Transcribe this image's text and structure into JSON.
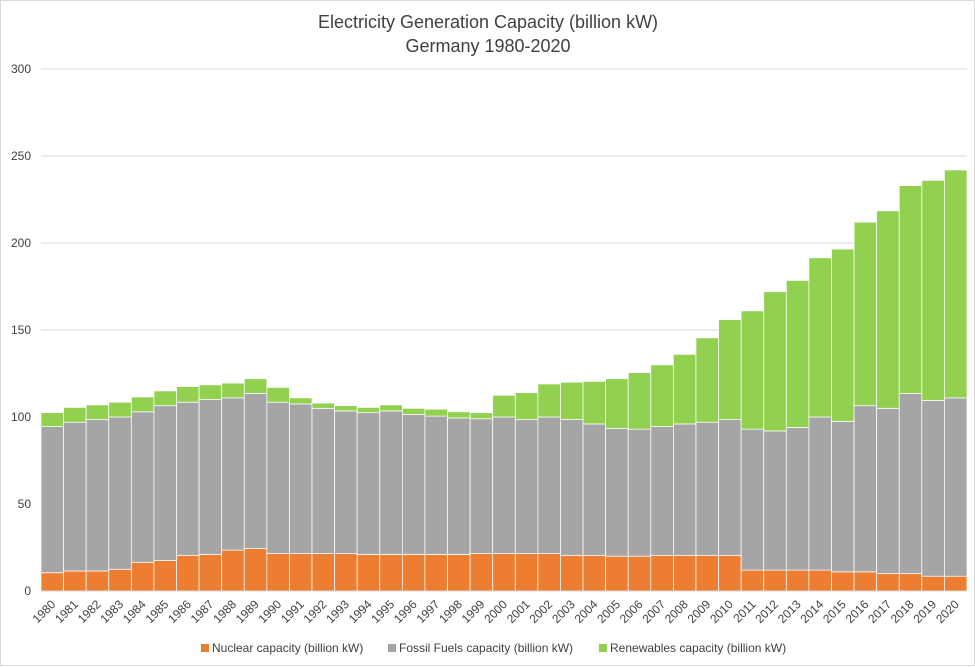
{
  "chart_data": {
    "type": "bar",
    "stacked": true,
    "title": "Electricity Generation Capacity (billion kW)",
    "subtitle": "Germany 1980-2020",
    "xlabel": "",
    "ylabel": "",
    "ylim": [
      0,
      300
    ],
    "yticks": [
      0,
      50,
      100,
      150,
      200,
      250,
      300
    ],
    "grid": true,
    "legend_position": "bottom",
    "categories": [
      "1980",
      "1981",
      "1982",
      "1983",
      "1984",
      "1985",
      "1986",
      "1987",
      "1988",
      "1989",
      "1990",
      "1991",
      "1992",
      "1993",
      "1994",
      "1995",
      "1996",
      "1997",
      "1998",
      "1999",
      "2000",
      "2001",
      "2002",
      "2003",
      "2004",
      "2005",
      "2006",
      "2007",
      "2008",
      "2009",
      "2010",
      "2011",
      "2012",
      "2013",
      "2014",
      "2015",
      "2016",
      "2017",
      "2018",
      "2019",
      "2020"
    ],
    "series": [
      {
        "name": "Nuclear capacity (billion kW)",
        "color": "#ed7d31",
        "values": [
          10.5,
          11.5,
          11.5,
          12.5,
          16.5,
          17.5,
          20.5,
          21,
          23.5,
          24.5,
          21.5,
          21.5,
          21.5,
          21.5,
          21,
          21,
          21,
          21,
          21,
          21.5,
          21.5,
          21.5,
          21.5,
          20.5,
          20.5,
          20,
          20,
          20.5,
          20.5,
          20.5,
          20.5,
          12,
          12,
          12,
          12,
          11,
          11,
          10,
          10,
          8.5,
          8.5
        ]
      },
      {
        "name": "Fossil Fuels capacity (billion kW)",
        "color": "#a5a5a5",
        "values": [
          84,
          85.5,
          87,
          87.5,
          86.5,
          89,
          88,
          89,
          87.5,
          89,
          87,
          86,
          83.5,
          82,
          81.5,
          82.5,
          80.5,
          79.5,
          78.5,
          77.5,
          78.5,
          77,
          78.5,
          78,
          75.5,
          73.5,
          73,
          74,
          75.5,
          76.5,
          78,
          81,
          80,
          82,
          88,
          86.5,
          95.5,
          95,
          103.5,
          101,
          102.5
        ]
      },
      {
        "name": "Renewables capacity (billion kW)",
        "color": "#92d050",
        "values": [
          8,
          8.5,
          8.5,
          8.5,
          8.5,
          8.5,
          9,
          8.5,
          8.5,
          8.5,
          8.5,
          3.5,
          3,
          3,
          3,
          3.5,
          3.5,
          4,
          3.5,
          3.5,
          12.5,
          15.5,
          19,
          21.5,
          24.5,
          28.5,
          32.5,
          35.5,
          40,
          48.5,
          57.5,
          68,
          80,
          84.5,
          91.5,
          99,
          105.5,
          113.5,
          119.5,
          126.5,
          131
        ]
      }
    ]
  }
}
